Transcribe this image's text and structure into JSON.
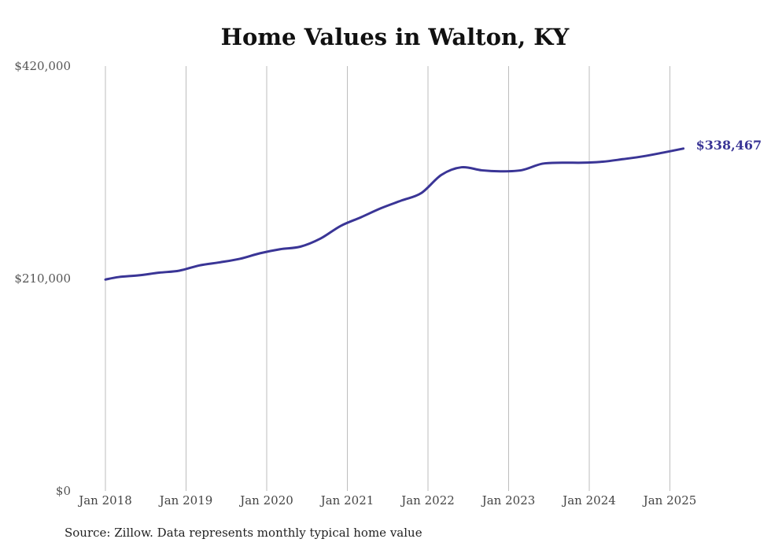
{
  "chart_data": {
    "type": "line",
    "title": "Home Values in Walton, KY",
    "xlabel": "",
    "ylabel": "",
    "ylim": [
      0,
      420000
    ],
    "y_ticks": [
      "$0",
      "$210,000",
      "$420,000"
    ],
    "y_tick_values": [
      0,
      210000,
      420000
    ],
    "x_ticks": [
      "Jan 2018",
      "Jan 2019",
      "Jan 2020",
      "Jan 2021",
      "Jan 2022",
      "Jan 2023",
      "Jan 2024",
      "Jan 2025"
    ],
    "x_tick_values": [
      "2018-01",
      "2019-01",
      "2020-01",
      "2021-01",
      "2022-01",
      "2023-01",
      "2024-01",
      "2025-01"
    ],
    "grid": "vertical",
    "line_color": "#3a3596",
    "end_label": "$338,467",
    "series": [
      {
        "points": [
          [
            "2018-01",
            209000
          ],
          [
            "2018-03",
            211500
          ],
          [
            "2018-06",
            213200
          ],
          [
            "2018-09",
            215800
          ],
          [
            "2018-12",
            217800
          ],
          [
            "2019-03",
            223000
          ],
          [
            "2019-06",
            226000
          ],
          [
            "2019-09",
            229500
          ],
          [
            "2019-12",
            235000
          ],
          [
            "2020-03",
            239000
          ],
          [
            "2020-06",
            241500
          ],
          [
            "2020-09",
            249500
          ],
          [
            "2020-12",
            262000
          ],
          [
            "2021-03",
            270500
          ],
          [
            "2021-06",
            279500
          ],
          [
            "2021-09",
            287000
          ],
          [
            "2021-12",
            294500
          ],
          [
            "2022-03",
            312500
          ],
          [
            "2022-06",
            320000
          ],
          [
            "2022-09",
            317000
          ],
          [
            "2022-12",
            316000
          ],
          [
            "2023-03",
            317200
          ],
          [
            "2023-06",
            323500
          ],
          [
            "2023-09",
            324500
          ],
          [
            "2023-12",
            324500
          ],
          [
            "2024-03",
            325500
          ],
          [
            "2024-06",
            328000
          ],
          [
            "2024-09",
            330800
          ],
          [
            "2024-12",
            334500
          ],
          [
            "2025-03",
            338467
          ]
        ]
      }
    ]
  },
  "footer": {
    "source": "Source: Zillow. Data represents monthly typical home value"
  }
}
